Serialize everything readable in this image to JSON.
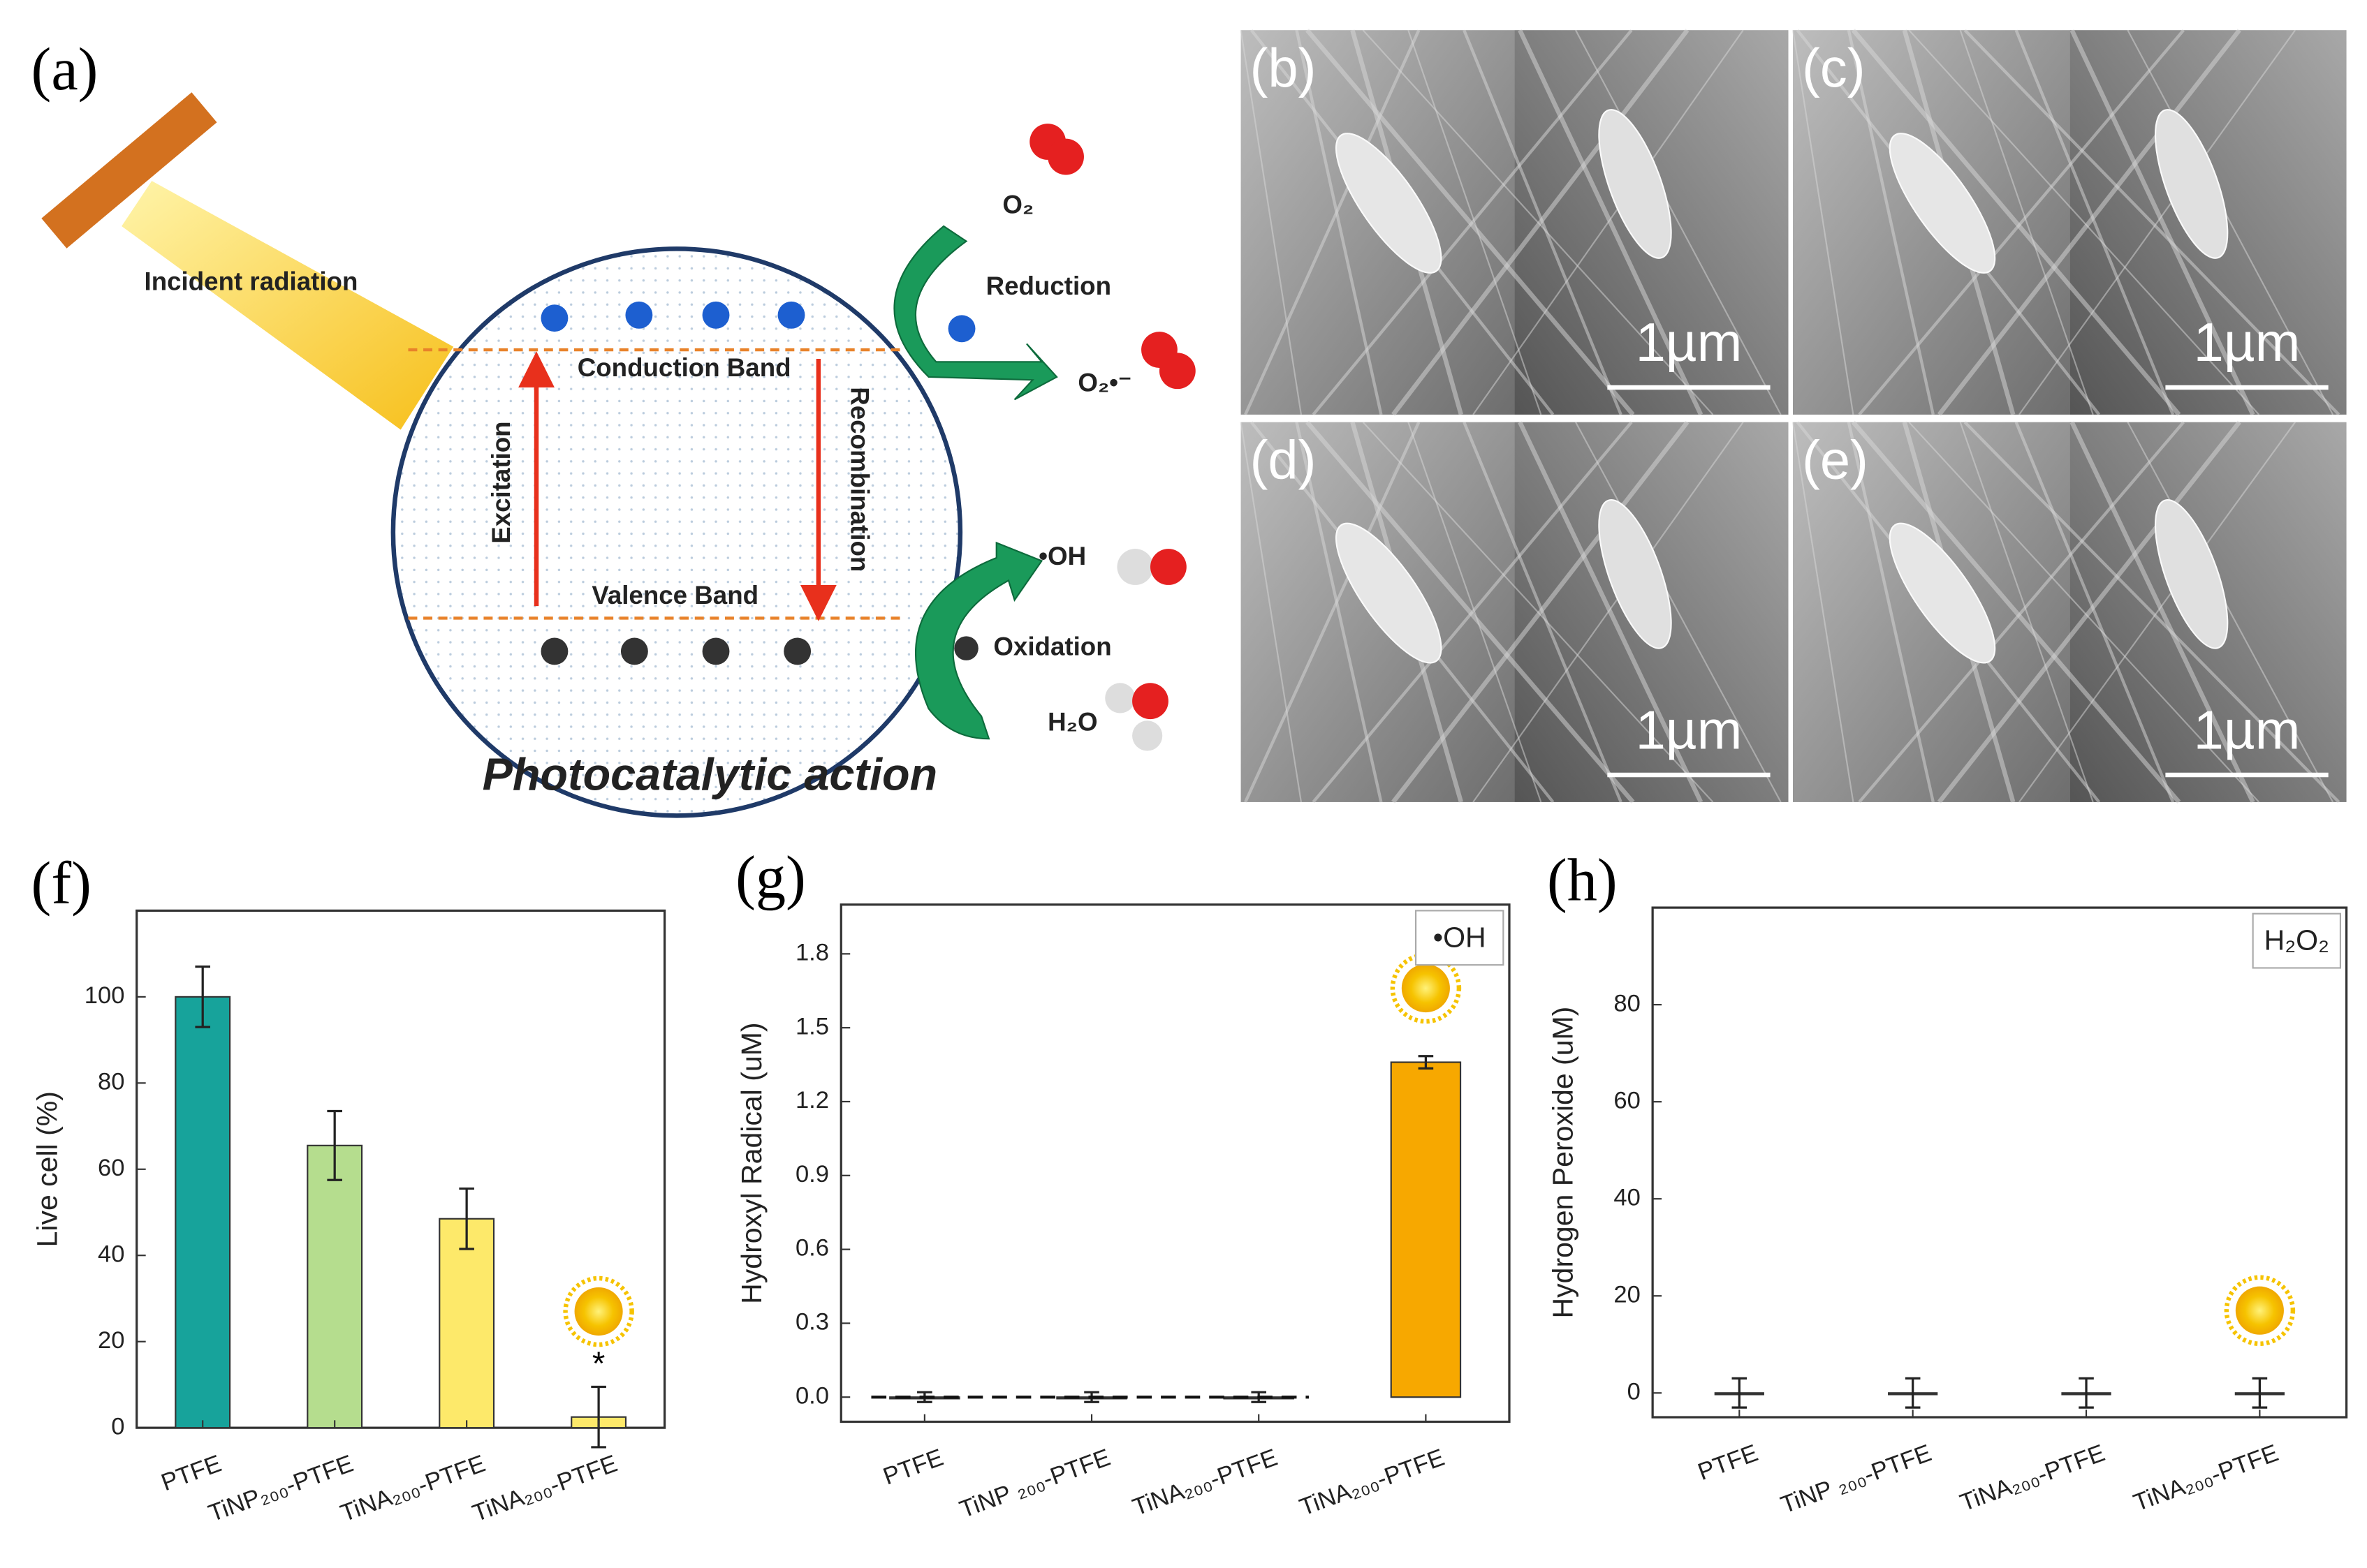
{
  "diagram": {
    "label": "(a)",
    "incident": "Incident radiation",
    "conduction": "Conduction Band",
    "valence": "Valence Band",
    "excitation": "Excitation",
    "recombination": "Recombination",
    "reduction": "Reduction",
    "oxidation": "Oxidation",
    "o2": "O₂",
    "superoxide": "O₂•⁻",
    "hydroxyl": "•OH",
    "water": "H₂O",
    "caption": "Photocatalytic action"
  },
  "micrographs": [
    {
      "label": "(b)",
      "scale": "1µm"
    },
    {
      "label": "(c)",
      "scale": "1µm"
    },
    {
      "label": "(d)",
      "scale": "1µm"
    },
    {
      "label": "(e)",
      "scale": "1µm"
    }
  ],
  "chart_data": [
    {
      "type": "bar",
      "panel": "(f)",
      "ylabel": "Live cell (%)",
      "categories": [
        "PTFE",
        "TiNP₂₀₀-PTFE",
        "TiNA₂₀₀-PTFE",
        "TiNA₂₀₀-PTFE"
      ],
      "values": [
        100,
        65.5,
        48.5,
        2.5
      ],
      "errors": [
        7,
        8,
        7,
        7
      ],
      "colors": [
        "#17a39b",
        "#b5dd8e",
        "#fde96a",
        "#fde96a"
      ],
      "annotation": "*",
      "ylim": [
        0,
        120
      ],
      "yticks": [
        0,
        20,
        40,
        60,
        80,
        100
      ]
    },
    {
      "type": "bar",
      "panel": "(g)",
      "ylabel": "Hydroxyl Radical (uM)",
      "legend": "•OH",
      "categories": [
        "PTFE",
        "TiNP ₂₀₀-PTFE",
        "TiNA₂₀₀-PTFE",
        "TiNA₂₀₀-PTFE"
      ],
      "values": [
        0,
        0,
        0,
        1.36
      ],
      "errors": [
        0.02,
        0.02,
        0.02,
        0.025
      ],
      "colors": [
        "#17a39b",
        "#b5dd8e",
        "#f7a800",
        "#f7a800"
      ],
      "ylim": [
        -0.1,
        2.0
      ],
      "yticks": [
        {
          "value": 0,
          "label": "0.0"
        },
        0.3,
        0.6,
        0.9,
        1.2,
        1.5,
        1.8
      ]
    },
    {
      "type": "bar",
      "panel": "(h)",
      "ylabel": "Hydrogen Peroxide (uM)",
      "legend": "H₂O₂",
      "categories": [
        "PTFE",
        "TiNP ₂₀₀-PTFE",
        "TiNA₂₀₀-PTFE",
        "TiNA₂₀₀-PTFE"
      ],
      "values": [
        0,
        0,
        0,
        0
      ],
      "errors": [
        3,
        3,
        3,
        3
      ],
      "colors": [
        "#17a39b",
        "#b5dd8e",
        "#f7a800",
        "#f7a800"
      ],
      "ylim": [
        -5,
        100
      ],
      "yticks": [
        0,
        20,
        40,
        60,
        80
      ]
    }
  ]
}
